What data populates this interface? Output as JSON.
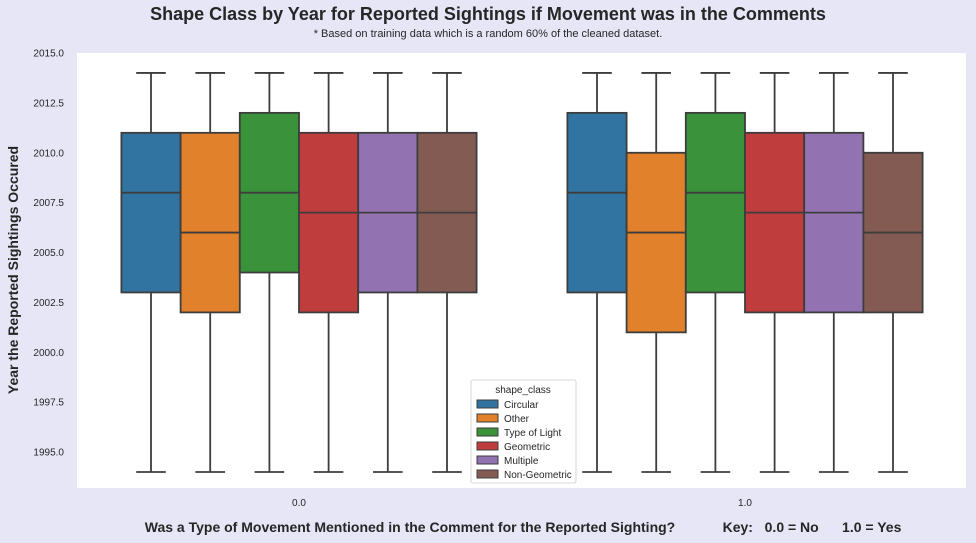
{
  "chart_data": {
    "type": "box",
    "title": "Shape Class by Year for Reported Sightings if Movement was in the Comments",
    "subtitle": "* Based on training data which is a random 60% of the cleaned dataset.",
    "xlabel": "Was a Type of Movement Mentioned in the Comment for the Reported Sighting?",
    "xlabel_key": "Key:   0.0 = No      1.0 = Yes",
    "ylabel": "Year the Reported Sightings Occured",
    "ylim": [
      1993.2,
      2015.0
    ],
    "yticks": [
      "1995.0",
      "1997.5",
      "2000.0",
      "2002.5",
      "2005.0",
      "2007.5",
      "2010.0",
      "2012.5",
      "2015.0"
    ],
    "categories": [
      "0.0",
      "1.0"
    ],
    "grid": false,
    "legend": {
      "title": "shape_class",
      "placement": "lower-center"
    },
    "series": [
      {
        "name": "Circular",
        "color": "#3274a1",
        "boxes": [
          {
            "whislo": 1994,
            "q1": 2003,
            "med": 2008,
            "q3": 2011,
            "whishi": 2014
          },
          {
            "whislo": 1994,
            "q1": 2003,
            "med": 2008,
            "q3": 2012,
            "whishi": 2014
          }
        ]
      },
      {
        "name": "Other",
        "color": "#e1812c",
        "boxes": [
          {
            "whislo": 1994,
            "q1": 2002,
            "med": 2006,
            "q3": 2011,
            "whishi": 2014
          },
          {
            "whislo": 1994,
            "q1": 2001,
            "med": 2006,
            "q3": 2010,
            "whishi": 2014
          }
        ]
      },
      {
        "name": "Type of Light",
        "color": "#3a923a",
        "boxes": [
          {
            "whislo": 1994,
            "q1": 2004,
            "med": 2008,
            "q3": 2012,
            "whishi": 2014
          },
          {
            "whislo": 1994,
            "q1": 2003,
            "med": 2008,
            "q3": 2012,
            "whishi": 2014
          }
        ]
      },
      {
        "name": "Geometric",
        "color": "#c03d3e",
        "boxes": [
          {
            "whislo": 1994,
            "q1": 2002,
            "med": 2007,
            "q3": 2011,
            "whishi": 2014
          },
          {
            "whislo": 1994,
            "q1": 2002,
            "med": 2007,
            "q3": 2011,
            "whishi": 2014
          }
        ]
      },
      {
        "name": "Multiple",
        "color": "#9372b2",
        "boxes": [
          {
            "whislo": 1994,
            "q1": 2003,
            "med": 2007,
            "q3": 2011,
            "whishi": 2014
          },
          {
            "whislo": 1994,
            "q1": 2002,
            "med": 2007,
            "q3": 2011,
            "whishi": 2014
          }
        ]
      },
      {
        "name": "Non-Geometric",
        "color": "#845b53",
        "boxes": [
          {
            "whislo": 1994,
            "q1": 2003,
            "med": 2007,
            "q3": 2011,
            "whishi": 2014
          },
          {
            "whislo": 1994,
            "q1": 2002,
            "med": 2006,
            "q3": 2010,
            "whishi": 2014
          }
        ]
      }
    ]
  }
}
